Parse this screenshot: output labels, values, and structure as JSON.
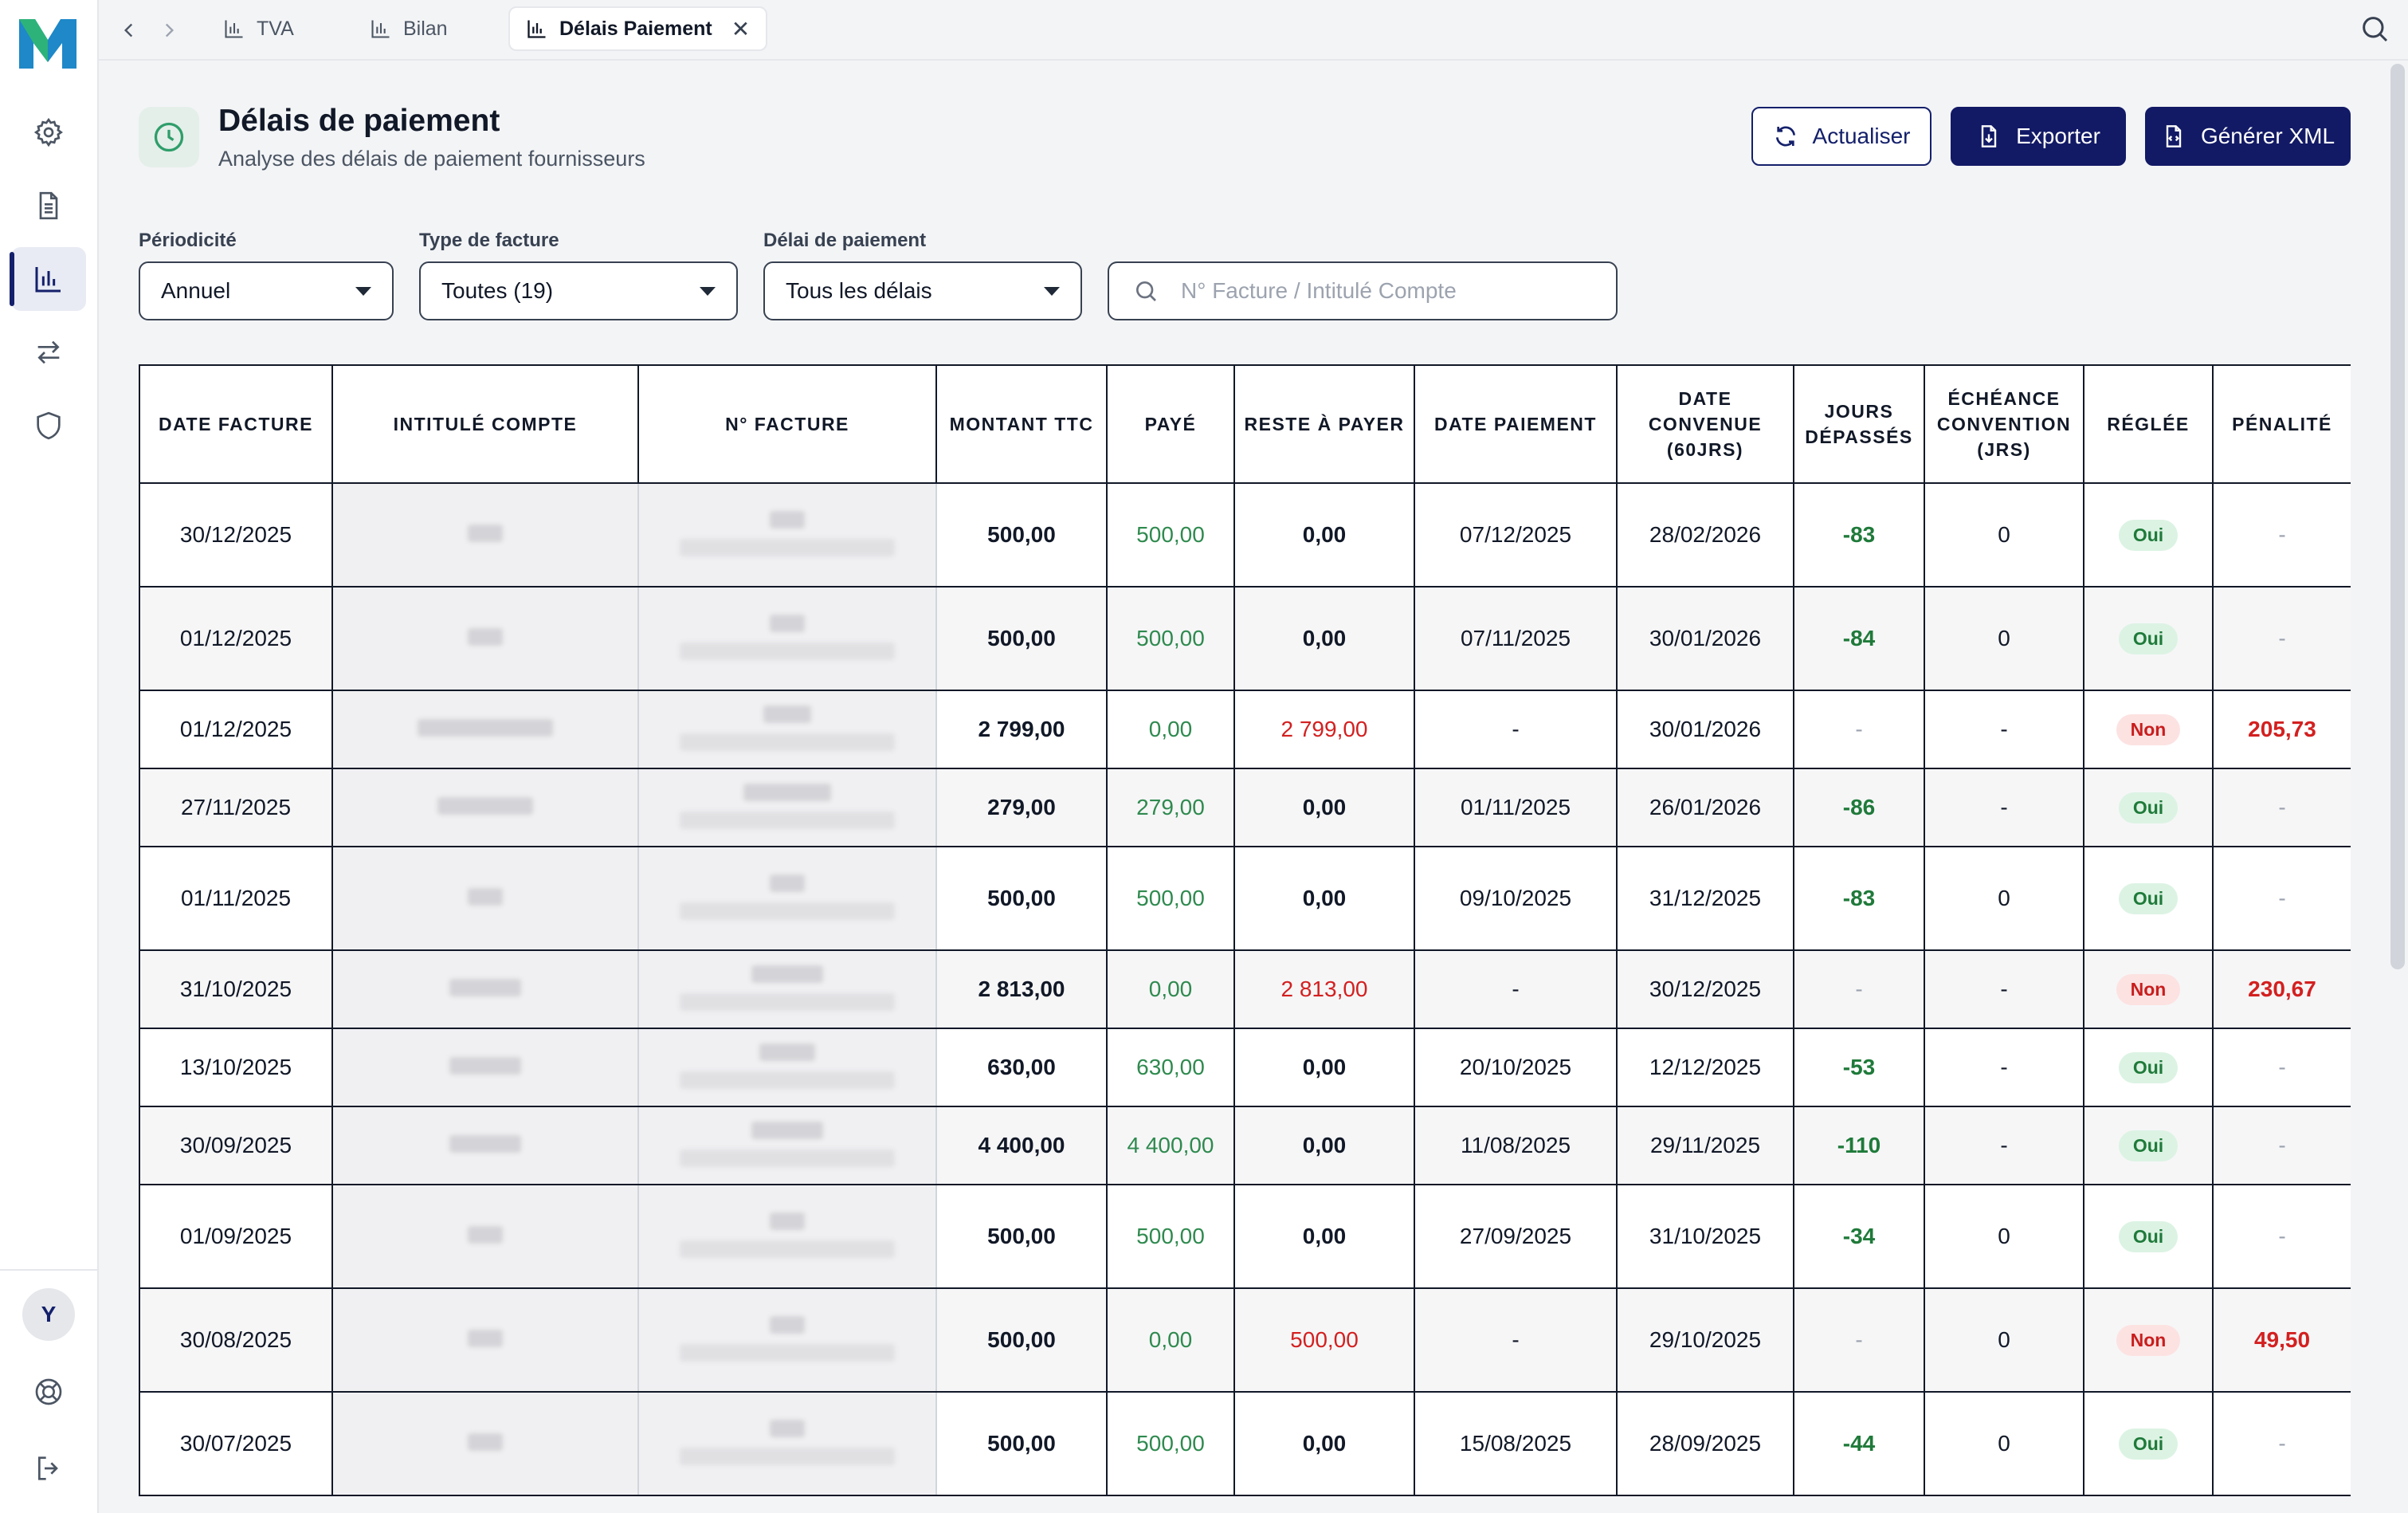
{
  "tabs": [
    {
      "label": "TVA",
      "active": false
    },
    {
      "label": "Bilan",
      "active": false
    },
    {
      "label": "Délais Paiement",
      "active": true
    }
  ],
  "header": {
    "title": "Délais de paiement",
    "subtitle": "Analyse des délais de paiement fournisseurs"
  },
  "actions": {
    "refresh": "Actualiser",
    "export": "Exporter",
    "xml": "Générer XML"
  },
  "filters": {
    "periodicity_label": "Périodicité",
    "periodicity_value": "Annuel",
    "type_label": "Type de facture",
    "type_value": "Toutes (19)",
    "delay_label": "Délai de paiement",
    "delay_value": "Tous les délais",
    "search_placeholder": "N° Facture / Intitulé Compte"
  },
  "user": {
    "initial": "Y"
  },
  "colors": {
    "brand": "#121a66",
    "positive": "#2f8a4f",
    "negative": "#d32020"
  },
  "table": {
    "headers": [
      "Date facture",
      "Intitulé compte",
      "N° facture",
      "Montant TTC",
      "Payé",
      "Reste à payer",
      "Date paiement",
      "Date convenue (60jrs)",
      "Jours dépassés",
      "Échéance convention (jrs)",
      "Réglée",
      "Pénalité"
    ],
    "rows": [
      {
        "date": "30/12/2025",
        "montant": "500,00",
        "paye": "500,00",
        "reste": "0,00",
        "date_paiement": "07/12/2025",
        "date_convenue": "28/02/2026",
        "jours": "-83",
        "echeance": "0",
        "reglee": "Oui",
        "penalite": "-"
      },
      {
        "date": "01/12/2025",
        "montant": "500,00",
        "paye": "500,00",
        "reste": "0,00",
        "date_paiement": "07/11/2025",
        "date_convenue": "30/01/2026",
        "jours": "-84",
        "echeance": "0",
        "reglee": "Oui",
        "penalite": "-"
      },
      {
        "date": "01/12/2025",
        "montant": "2 799,00",
        "paye": "0,00",
        "reste": "2 799,00",
        "date_paiement": "-",
        "date_convenue": "30/01/2026",
        "jours": "-",
        "echeance": "-",
        "reglee": "Non",
        "penalite": "205,73"
      },
      {
        "date": "27/11/2025",
        "montant": "279,00",
        "paye": "279,00",
        "reste": "0,00",
        "date_paiement": "01/11/2025",
        "date_convenue": "26/01/2026",
        "jours": "-86",
        "echeance": "-",
        "reglee": "Oui",
        "penalite": "-"
      },
      {
        "date": "01/11/2025",
        "montant": "500,00",
        "paye": "500,00",
        "reste": "0,00",
        "date_paiement": "09/10/2025",
        "date_convenue": "31/12/2025",
        "jours": "-83",
        "echeance": "0",
        "reglee": "Oui",
        "penalite": "-"
      },
      {
        "date": "31/10/2025",
        "montant": "2 813,00",
        "paye": "0,00",
        "reste": "2 813,00",
        "date_paiement": "-",
        "date_convenue": "30/12/2025",
        "jours": "-",
        "echeance": "-",
        "reglee": "Non",
        "penalite": "230,67"
      },
      {
        "date": "13/10/2025",
        "montant": "630,00",
        "paye": "630,00",
        "reste": "0,00",
        "date_paiement": "20/10/2025",
        "date_convenue": "12/12/2025",
        "jours": "-53",
        "echeance": "-",
        "reglee": "Oui",
        "penalite": "-"
      },
      {
        "date": "30/09/2025",
        "montant": "4 400,00",
        "paye": "4 400,00",
        "reste": "0,00",
        "date_paiement": "11/08/2025",
        "date_convenue": "29/11/2025",
        "jours": "-110",
        "echeance": "-",
        "reglee": "Oui",
        "penalite": "-"
      },
      {
        "date": "01/09/2025",
        "montant": "500,00",
        "paye": "500,00",
        "reste": "0,00",
        "date_paiement": "27/09/2025",
        "date_convenue": "31/10/2025",
        "jours": "-34",
        "echeance": "0",
        "reglee": "Oui",
        "penalite": "-"
      },
      {
        "date": "30/08/2025",
        "montant": "500,00",
        "paye": "0,00",
        "reste": "500,00",
        "date_paiement": "-",
        "date_convenue": "29/10/2025",
        "jours": "-",
        "echeance": "0",
        "reglee": "Non",
        "penalite": "49,50"
      },
      {
        "date": "30/07/2025",
        "montant": "500,00",
        "paye": "500,00",
        "reste": "0,00",
        "date_paiement": "15/08/2025",
        "date_convenue": "28/09/2025",
        "jours": "-44",
        "echeance": "0",
        "reglee": "Oui",
        "penalite": "-"
      }
    ]
  }
}
